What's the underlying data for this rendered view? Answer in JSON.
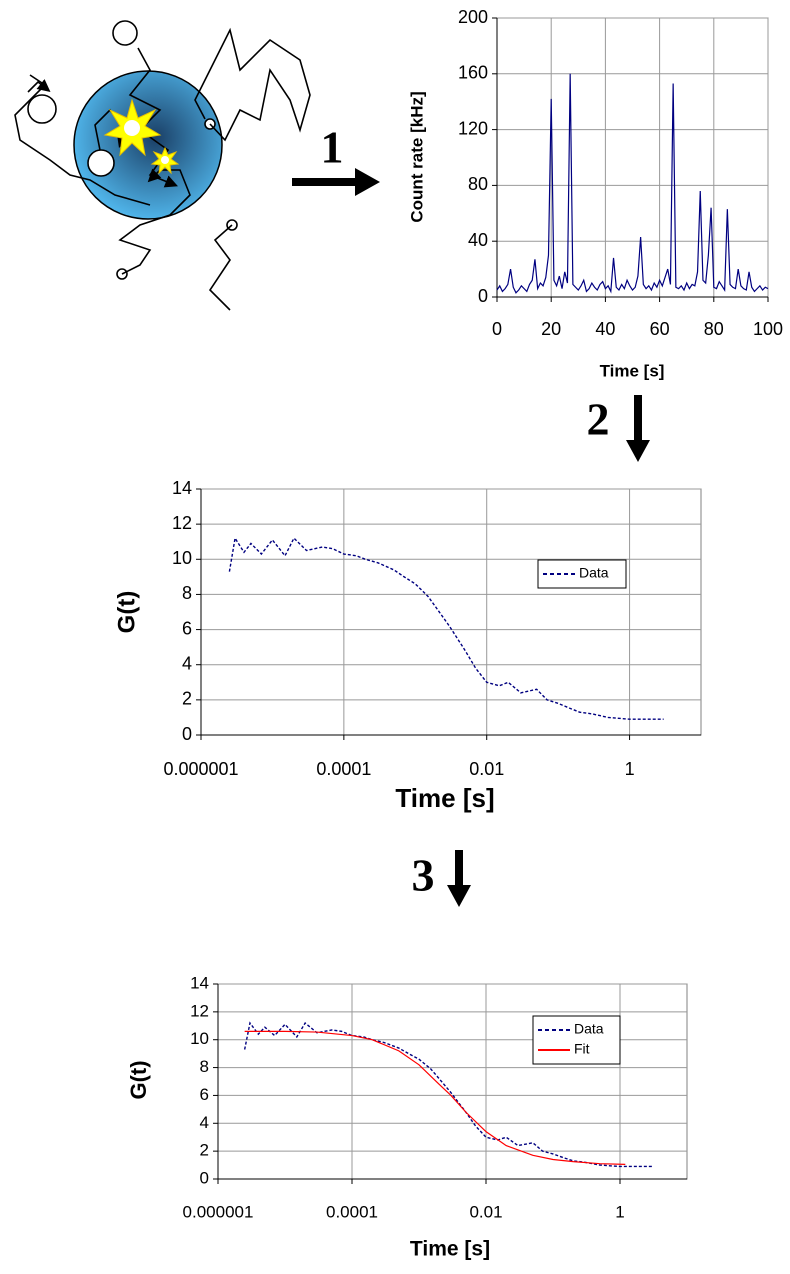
{
  "steps": [
    "1",
    "2",
    "3"
  ],
  "chart_data": [
    {
      "type": "line",
      "y_label": "Count rate [kHz]",
      "x_label": "Time [s]",
      "xlim": [
        0,
        100
      ],
      "xticks": [
        0,
        20,
        40,
        60,
        80,
        100
      ],
      "ylim": [
        0,
        200
      ],
      "yticks": [
        0,
        40,
        80,
        120,
        160,
        200
      ],
      "grid": true,
      "series": [
        {
          "color": "#000080",
          "line_style": "solid",
          "x": [
            0,
            1,
            2,
            3,
            4,
            5,
            6,
            7,
            8,
            9,
            10,
            11,
            12,
            13,
            14,
            15,
            16,
            17,
            18,
            19,
            20,
            21,
            22,
            23,
            24,
            25,
            26,
            27,
            28,
            29,
            30,
            31,
            32,
            33,
            34,
            35,
            36,
            37,
            38,
            39,
            40,
            41,
            42,
            43,
            44,
            45,
            46,
            47,
            48,
            49,
            50,
            51,
            52,
            53,
            54,
            55,
            56,
            57,
            58,
            59,
            60,
            61,
            62,
            63,
            64,
            65,
            66,
            67,
            68,
            69,
            70,
            71,
            72,
            73,
            74,
            75,
            76,
            77,
            78,
            79,
            80,
            81,
            82,
            83,
            84,
            85,
            86,
            87,
            88,
            89,
            90,
            91,
            92,
            93,
            94,
            95,
            96,
            97,
            98,
            99,
            100
          ],
          "values": [
            5,
            8,
            4,
            6,
            9,
            20,
            7,
            3,
            5,
            8,
            6,
            4,
            9,
            12,
            27,
            6,
            10,
            8,
            14,
            30,
            142,
            12,
            8,
            15,
            6,
            18,
            10,
            160,
            9,
            7,
            5,
            8,
            12,
            4,
            6,
            10,
            7,
            5,
            9,
            11,
            6,
            8,
            4,
            28,
            7,
            5,
            9,
            6,
            12,
            8,
            5,
            7,
            15,
            43,
            9,
            6,
            8,
            5,
            10,
            7,
            12,
            8,
            14,
            20,
            9,
            153,
            7,
            6,
            8,
            5,
            10,
            6,
            9,
            8,
            18,
            76,
            12,
            10,
            30,
            64,
            7,
            6,
            11,
            8,
            5,
            63,
            9,
            7,
            6,
            20,
            8,
            6,
            5,
            18,
            7,
            4,
            6,
            8,
            5,
            7,
            6
          ]
        }
      ]
    },
    {
      "type": "line",
      "x_scale": "log",
      "y_label": "G(t)",
      "x_label": "Time [s]",
      "xlim": [
        1e-06,
        10
      ],
      "xticks": [
        1e-06,
        0.0001,
        0.01,
        1
      ],
      "ylim": [
        0,
        14
      ],
      "yticks": [
        0,
        2,
        4,
        6,
        8,
        10,
        12,
        14
      ],
      "grid": true,
      "legend": "right",
      "series": [
        {
          "name": "Data",
          "color": "#000080",
          "line_style": "dashed",
          "x": [
            2.5e-06,
            3e-06,
            4e-06,
            5e-06,
            7e-06,
            1e-05,
            1.5e-05,
            2e-05,
            3e-05,
            5e-05,
            7e-05,
            0.0001,
            0.00015,
            0.0002,
            0.0003,
            0.0005,
            0.0007,
            0.001,
            0.0015,
            0.002,
            0.003,
            0.005,
            0.007,
            0.01,
            0.015,
            0.02,
            0.03,
            0.05,
            0.07,
            0.1,
            0.15,
            0.2,
            0.3,
            0.5,
            0.7,
            1,
            1.5,
            2,
            3
          ],
          "values": [
            9.3,
            11.2,
            10.4,
            10.9,
            10.3,
            11.1,
            10.2,
            11.2,
            10.5,
            10.7,
            10.6,
            10.3,
            10.2,
            10.0,
            9.8,
            9.4,
            9.0,
            8.6,
            7.9,
            7.2,
            6.2,
            4.8,
            3.8,
            3.0,
            2.8,
            3.0,
            2.4,
            2.6,
            2.0,
            1.8,
            1.5,
            1.3,
            1.2,
            1.0,
            0.95,
            0.9,
            0.9,
            0.9,
            0.9
          ]
        }
      ]
    },
    {
      "type": "line",
      "x_scale": "log",
      "y_label": "G(t)",
      "x_label": "Time [s]",
      "xlim": [
        1e-06,
        10
      ],
      "xticks": [
        1e-06,
        0.0001,
        0.01,
        1
      ],
      "ylim": [
        0,
        14
      ],
      "yticks": [
        0,
        2,
        4,
        6,
        8,
        10,
        12,
        14
      ],
      "grid": true,
      "legend": "right",
      "series": [
        {
          "name": "Data",
          "color": "#000080",
          "line_style": "dashed",
          "x": [
            2.5e-06,
            3e-06,
            4e-06,
            5e-06,
            7e-06,
            1e-05,
            1.5e-05,
            2e-05,
            3e-05,
            5e-05,
            7e-05,
            0.0001,
            0.00015,
            0.0002,
            0.0003,
            0.0005,
            0.0007,
            0.001,
            0.0015,
            0.002,
            0.003,
            0.005,
            0.007,
            0.01,
            0.015,
            0.02,
            0.03,
            0.05,
            0.07,
            0.1,
            0.15,
            0.2,
            0.3,
            0.5,
            0.7,
            1,
            1.5,
            2,
            3
          ],
          "values": [
            9.3,
            11.2,
            10.4,
            10.9,
            10.3,
            11.1,
            10.2,
            11.2,
            10.5,
            10.7,
            10.6,
            10.3,
            10.2,
            10.0,
            9.8,
            9.4,
            9.0,
            8.6,
            7.9,
            7.2,
            6.2,
            4.8,
            3.8,
            3.0,
            2.8,
            3.0,
            2.4,
            2.6,
            2.0,
            1.8,
            1.5,
            1.3,
            1.2,
            1.0,
            0.95,
            0.9,
            0.9,
            0.9,
            0.9
          ]
        },
        {
          "name": "Fit",
          "color": "#ff0000",
          "line_style": "solid",
          "x": [
            2.5e-06,
            1e-05,
            3e-05,
            0.0001,
            0.0002,
            0.0005,
            0.001,
            0.002,
            0.003,
            0.005,
            0.01,
            0.02,
            0.05,
            0.1,
            0.2,
            0.5,
            1.2
          ],
          "values": [
            10.6,
            10.6,
            10.55,
            10.3,
            10.0,
            9.2,
            8.2,
            6.8,
            6.0,
            4.8,
            3.4,
            2.4,
            1.7,
            1.4,
            1.25,
            1.1,
            1.05
          ]
        }
      ]
    }
  ]
}
